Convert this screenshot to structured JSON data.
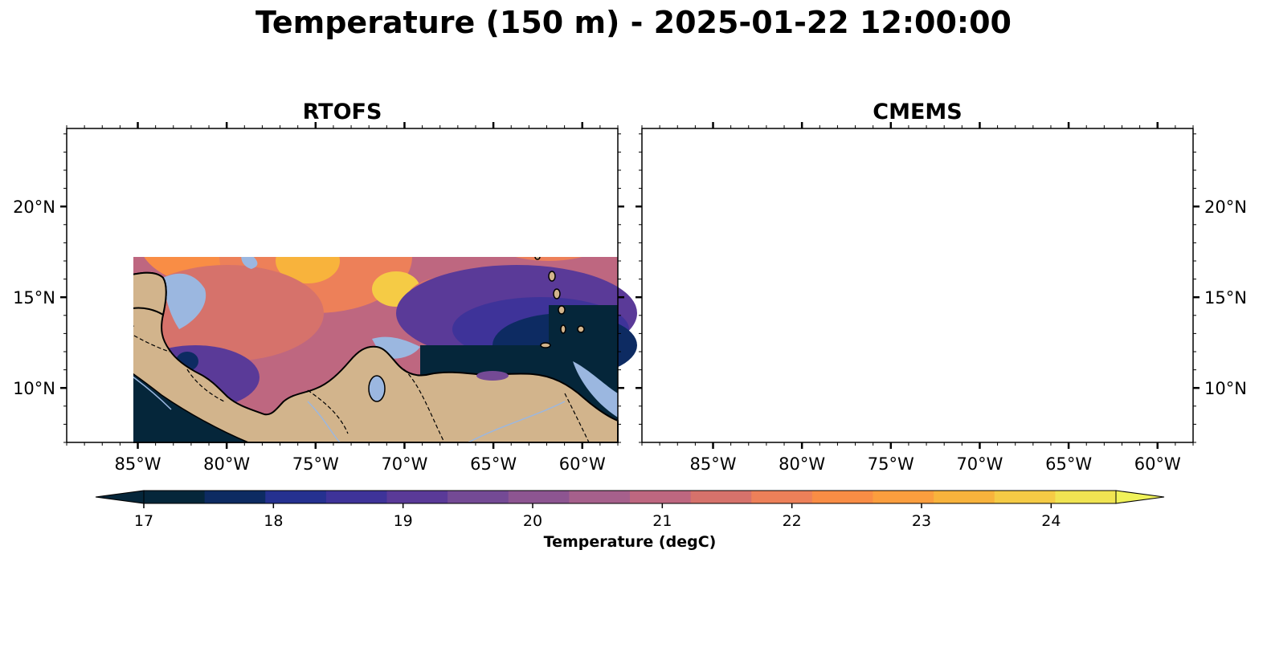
{
  "title": "Temperature (150 m) - 2025-01-22 12:00:00",
  "panels": [
    {
      "title": "RTOFS"
    },
    {
      "title": "CMEMS"
    }
  ],
  "map": {
    "lon_range": [
      -89,
      -58
    ],
    "lat_range": [
      7,
      24.3
    ],
    "lon_ticks": [
      {
        "value": -85,
        "label": "85°W"
      },
      {
        "value": -80,
        "label": "80°W"
      },
      {
        "value": -75,
        "label": "75°W"
      },
      {
        "value": -70,
        "label": "70°W"
      },
      {
        "value": -65,
        "label": "65°W"
      },
      {
        "value": -60,
        "label": "60°W"
      }
    ],
    "lat_ticks": [
      {
        "value": 10,
        "label": "10°N"
      },
      {
        "value": 15,
        "label": "15°N"
      },
      {
        "value": 20,
        "label": "20°N"
      }
    ],
    "land_color": "#d2b48c",
    "shelf_color": "#9bb7e0",
    "coast_color": "#000000",
    "river_color": "#9bb7e0"
  },
  "colorbar": {
    "label": "Temperature (degC)",
    "min": 17,
    "max": 24.5,
    "extend": "both",
    "tick_values": [
      17,
      18,
      19,
      20,
      21,
      22,
      23,
      24
    ],
    "tick_labels": [
      "17",
      "18",
      "19",
      "20",
      "21",
      "22",
      "23",
      "24"
    ],
    "colors": [
      "#05263a",
      "#0d2b62",
      "#253190",
      "#3e3399",
      "#5a3a98",
      "#744a95",
      "#8d5591",
      "#a6608c",
      "#be6780",
      "#d6726b",
      "#ed8059",
      "#f98d45",
      "#fb9e3e",
      "#f8b33c",
      "#f5cb45",
      "#f0e452"
    ],
    "extend_low_color": "#05263a",
    "extend_high_color": "#f0f25a"
  }
}
